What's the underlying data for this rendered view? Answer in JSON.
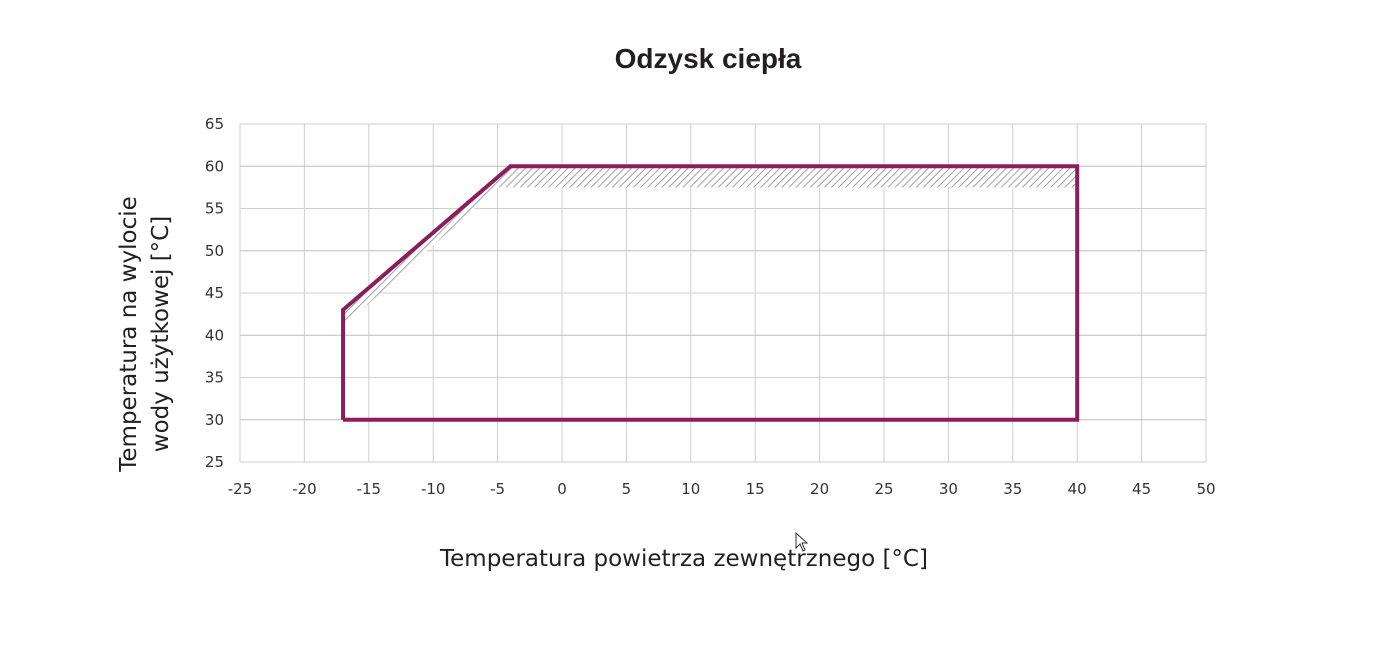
{
  "chart_data": {
    "type": "area",
    "title": "Odzysk ciepła",
    "xlabel": "Temperatura powietrza zewnętrznego [°C]",
    "ylabel_line1": "Temperatura na wylocie",
    "ylabel_line2": "wody użytkowej [°C]",
    "xlim": [
      -25,
      50
    ],
    "ylim": [
      25,
      65
    ],
    "x_ticks": [
      -25,
      -20,
      -15,
      -10,
      -5,
      0,
      5,
      10,
      15,
      20,
      25,
      30,
      35,
      40,
      45,
      50
    ],
    "y_ticks": [
      25,
      30,
      35,
      40,
      45,
      50,
      55,
      60,
      65
    ],
    "grid": true,
    "series": [
      {
        "kind": "operating-envelope",
        "color": "#8b1d5c",
        "points": [
          {
            "x": -17,
            "y": 30
          },
          {
            "x": -17,
            "y": 43
          },
          {
            "x": -4,
            "y": 60
          },
          {
            "x": 40,
            "y": 60
          },
          {
            "x": 40,
            "y": 30
          }
        ]
      },
      {
        "kind": "hatched-band",
        "color": "#8a8a8a",
        "upper": [
          {
            "x": -17,
            "y": 43
          },
          {
            "x": -4,
            "y": 60
          },
          {
            "x": 40,
            "y": 60
          }
        ],
        "lower": [
          {
            "x": -17,
            "y": 41
          },
          {
            "x": -5,
            "y": 57.5
          },
          {
            "x": 40,
            "y": 57.5
          }
        ]
      }
    ]
  },
  "icons": {
    "cursor": "mouse-pointer-icon"
  }
}
